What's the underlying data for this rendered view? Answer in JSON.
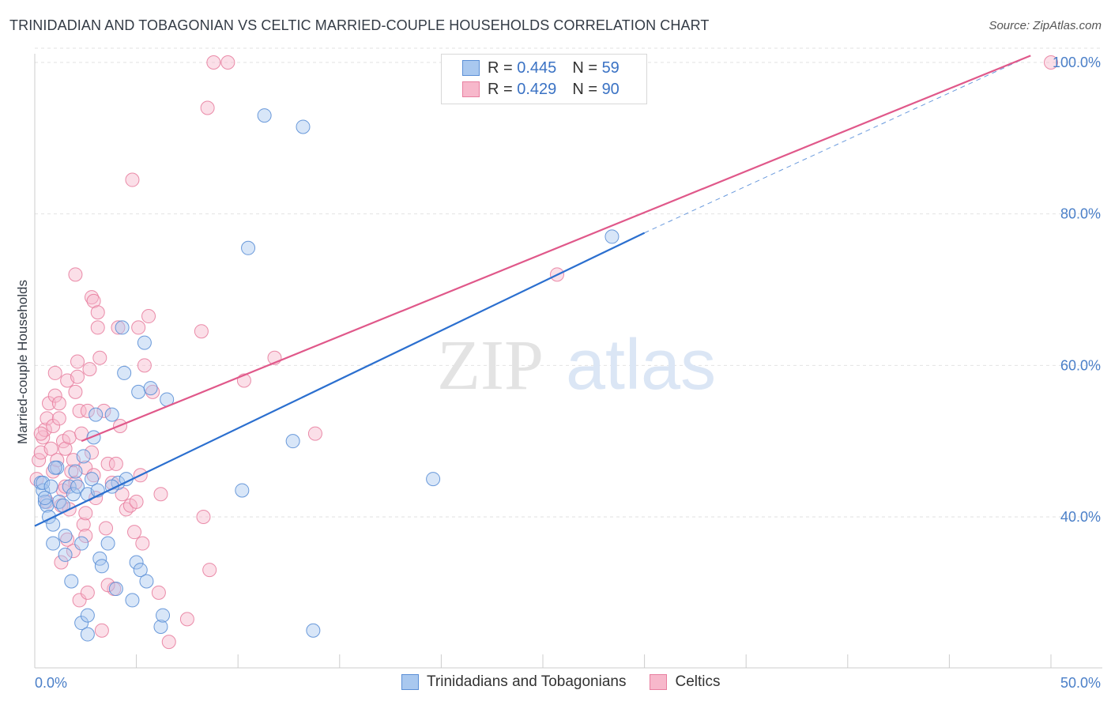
{
  "title": "TRINIDADIAN AND TOBAGONIAN VS CELTIC MARRIED-COUPLE HOUSEHOLDS CORRELATION CHART",
  "source": "Source: ZipAtlas.com",
  "watermark": {
    "zip": "ZIP",
    "atlas": "atlas"
  },
  "legend": {
    "rows": [
      {
        "r_label": "R = ",
        "r_value": "0.445",
        "n_label": "N = ",
        "n_value": "59"
      },
      {
        "r_label": "R = ",
        "r_value": "0.429",
        "n_label": "N = ",
        "n_value": "90"
      }
    ]
  },
  "colors": {
    "blue_fill": "#a9c8ef",
    "blue_stroke": "#5b8fd6",
    "blue_line": "#2b6fcf",
    "pink_fill": "#f7b8cb",
    "pink_stroke": "#e87fa0",
    "pink_line": "#e0588a",
    "grid": "#e2e2e2",
    "tick": "#4a7fc8"
  },
  "chart_data": {
    "type": "scatter",
    "title": "TRINIDADIAN AND TOBAGONIAN VS CELTIC MARRIED-COUPLE HOUSEHOLDS CORRELATION CHART",
    "xlabel": "",
    "ylabel": "Married-couple Households",
    "xlim": [
      0,
      50
    ],
    "ylim": [
      23,
      102
    ],
    "x_tick_labels": [
      "0.0%",
      "50.0%"
    ],
    "y_ticks": [
      40,
      60,
      80,
      100
    ],
    "y_tick_labels": [
      "40.0%",
      "60.0%",
      "80.0%",
      "100.0%"
    ],
    "series": [
      {
        "name": "Trinidadians and Tobagonians",
        "color": "#a9c8ef",
        "trend": {
          "x0": 0,
          "y0": 38.8,
          "x1": 30,
          "y1": 77.5,
          "dashed_to_x": 49,
          "dashed_to_y": 100.9
        },
        "points": [
          [
            0.3,
            44.5
          ],
          [
            0.4,
            43.5
          ],
          [
            0.5,
            42
          ],
          [
            0.6,
            41.5
          ],
          [
            0.4,
            44.5
          ],
          [
            0.7,
            40
          ],
          [
            0.8,
            44
          ],
          [
            0.9,
            39
          ],
          [
            0.9,
            36.5
          ],
          [
            1.1,
            46.5
          ],
          [
            1.2,
            42
          ],
          [
            1.4,
            41.5
          ],
          [
            1.5,
            37.5
          ],
          [
            1.5,
            35
          ],
          [
            1.8,
            31.5
          ],
          [
            1.7,
            44
          ],
          [
            1.9,
            43
          ],
          [
            2.0,
            46
          ],
          [
            2.1,
            44
          ],
          [
            2.3,
            26
          ],
          [
            2.3,
            36.5
          ],
          [
            2.4,
            48
          ],
          [
            2.6,
            24.5
          ],
          [
            2.6,
            43
          ],
          [
            2.8,
            45
          ],
          [
            2.9,
            50.5
          ],
          [
            3.0,
            53.5
          ],
          [
            3.1,
            43.5
          ],
          [
            3.2,
            34.5
          ],
          [
            3.3,
            33.5
          ],
          [
            3.6,
            36.5
          ],
          [
            3.8,
            53.5
          ],
          [
            4.0,
            30.5
          ],
          [
            4.1,
            44.5
          ],
          [
            4.3,
            65
          ],
          [
            4.4,
            59
          ],
          [
            4.5,
            45
          ],
          [
            4.8,
            29
          ],
          [
            5.0,
            34
          ],
          [
            5.1,
            56.5
          ],
          [
            5.2,
            33
          ],
          [
            5.4,
            63
          ],
          [
            5.5,
            31.5
          ],
          [
            5.7,
            57
          ],
          [
            6.2,
            25.5
          ],
          [
            6.3,
            27
          ],
          [
            6.5,
            55.5
          ],
          [
            10.2,
            43.5
          ],
          [
            10.5,
            75.5
          ],
          [
            11.3,
            93
          ],
          [
            12.7,
            50
          ],
          [
            13.2,
            91.5
          ],
          [
            13.7,
            25
          ],
          [
            19.6,
            45
          ],
          [
            28.4,
            77
          ],
          [
            2.6,
            27
          ],
          [
            0.5,
            42.5
          ],
          [
            1.0,
            46.5
          ],
          [
            3.8,
            44
          ]
        ]
      },
      {
        "name": "Celtics",
        "color": "#f7b8cb",
        "trend": {
          "x0": 2.3,
          "y0": 50,
          "x1": 49,
          "y1": 100.9
        },
        "points": [
          [
            0.1,
            45
          ],
          [
            0.2,
            47.5
          ],
          [
            0.3,
            48.5
          ],
          [
            0.4,
            50.5
          ],
          [
            0.5,
            51.5
          ],
          [
            0.6,
            42
          ],
          [
            0.6,
            53
          ],
          [
            0.7,
            55
          ],
          [
            0.8,
            49
          ],
          [
            0.9,
            46
          ],
          [
            0.9,
            52
          ],
          [
            1.0,
            56
          ],
          [
            1.0,
            59
          ],
          [
            1.1,
            47.5
          ],
          [
            1.2,
            53
          ],
          [
            1.2,
            55
          ],
          [
            1.3,
            41.5
          ],
          [
            1.3,
            34
          ],
          [
            1.4,
            43.5
          ],
          [
            1.4,
            50
          ],
          [
            1.5,
            44
          ],
          [
            1.5,
            49
          ],
          [
            1.6,
            37
          ],
          [
            1.6,
            58
          ],
          [
            1.7,
            50.5
          ],
          [
            1.8,
            46
          ],
          [
            1.9,
            35.5
          ],
          [
            1.9,
            47.5
          ],
          [
            2.0,
            72
          ],
          [
            2.0,
            56.5
          ],
          [
            2.1,
            58.5
          ],
          [
            2.1,
            60.5
          ],
          [
            2.2,
            29
          ],
          [
            2.2,
            54
          ],
          [
            2.3,
            51
          ],
          [
            2.4,
            39
          ],
          [
            2.5,
            40.5
          ],
          [
            2.5,
            46.5
          ],
          [
            2.5,
            37.5
          ],
          [
            2.6,
            30
          ],
          [
            2.6,
            54
          ],
          [
            2.7,
            59.5
          ],
          [
            2.8,
            69
          ],
          [
            2.8,
            48.5
          ],
          [
            2.9,
            68.5
          ],
          [
            2.9,
            45.5
          ],
          [
            3.0,
            42.5
          ],
          [
            3.1,
            65
          ],
          [
            3.1,
            67
          ],
          [
            3.2,
            61
          ],
          [
            3.3,
            25
          ],
          [
            3.4,
            54
          ],
          [
            3.5,
            38.5
          ],
          [
            3.6,
            47
          ],
          [
            3.8,
            44.5
          ],
          [
            3.9,
            30.5
          ],
          [
            4.0,
            47
          ],
          [
            4.1,
            65
          ],
          [
            4.2,
            52
          ],
          [
            4.3,
            43
          ],
          [
            4.5,
            41
          ],
          [
            4.7,
            41.5
          ],
          [
            4.8,
            84.5
          ],
          [
            4.9,
            38
          ],
          [
            5.0,
            42
          ],
          [
            5.1,
            65
          ],
          [
            5.2,
            45.5
          ],
          [
            5.3,
            36.5
          ],
          [
            5.4,
            60
          ],
          [
            5.6,
            66.5
          ],
          [
            5.8,
            56.5
          ],
          [
            6.1,
            30
          ],
          [
            6.2,
            43
          ],
          [
            6.6,
            23.5
          ],
          [
            7.5,
            26.5
          ],
          [
            8.2,
            64.5
          ],
          [
            8.3,
            40
          ],
          [
            8.6,
            33
          ],
          [
            8.5,
            94
          ],
          [
            8.8,
            100
          ],
          [
            9.5,
            100
          ],
          [
            10.3,
            58
          ],
          [
            11.8,
            61
          ],
          [
            13.8,
            51
          ],
          [
            25.7,
            72
          ],
          [
            50,
            100
          ],
          [
            0.3,
            51
          ],
          [
            1.7,
            41
          ],
          [
            2.0,
            44.5
          ],
          [
            3.6,
            31
          ]
        ]
      }
    ]
  },
  "bottom_legend": [
    {
      "label": "Trinidadians and Tobagonians"
    },
    {
      "label": "Celtics"
    }
  ]
}
